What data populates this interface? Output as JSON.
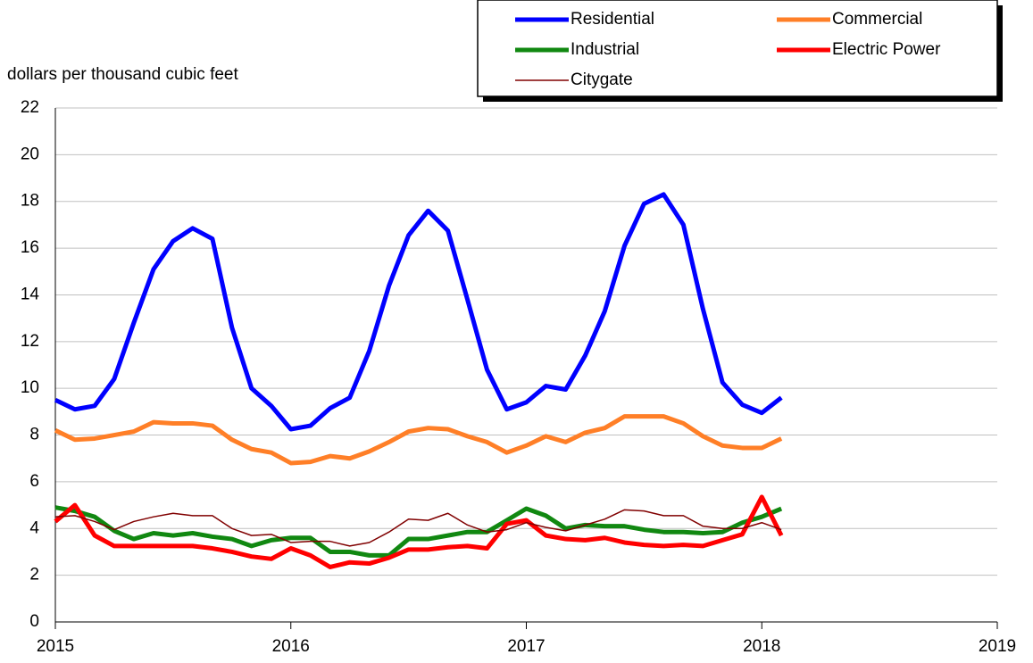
{
  "chart_data": {
    "type": "line",
    "y_axis_label": "dollars per thousand cubic feet",
    "x": [
      2015,
      2015.083,
      2015.167,
      2015.25,
      2015.333,
      2015.417,
      2015.5,
      2015.583,
      2015.667,
      2015.75,
      2015.833,
      2015.917,
      2016,
      2016.083,
      2016.167,
      2016.25,
      2016.333,
      2016.417,
      2016.5,
      2016.583,
      2016.667,
      2016.75,
      2016.833,
      2016.917,
      2017,
      2017.083,
      2017.167,
      2017.25,
      2017.333,
      2017.417,
      2017.5,
      2017.583,
      2017.667,
      2017.75,
      2017.833,
      2017.917,
      2018,
      2018.083
    ],
    "series": [
      {
        "name": "Residential",
        "color": "#0000ff",
        "width": 5,
        "values": [
          9.5,
          9.1,
          9.25,
          10.4,
          12.8,
          15.1,
          16.3,
          16.85,
          16.4,
          12.6,
          10.0,
          9.25,
          8.25,
          8.4,
          9.15,
          9.6,
          11.6,
          14.4,
          16.55,
          17.6,
          16.75,
          13.8,
          10.8,
          9.1,
          9.4,
          10.1,
          9.95,
          11.4,
          13.3,
          16.1,
          17.9,
          18.3,
          17.0,
          13.4,
          10.25,
          9.3,
          8.95,
          9.6
        ]
      },
      {
        "name": "Commercial",
        "color": "#ff7f27",
        "width": 5,
        "values": [
          8.2,
          7.8,
          7.85,
          8.0,
          8.15,
          8.55,
          8.5,
          8.5,
          8.4,
          7.8,
          7.4,
          7.25,
          6.8,
          6.85,
          7.1,
          7.0,
          7.3,
          7.7,
          8.15,
          8.3,
          8.25,
          7.95,
          7.7,
          7.25,
          7.55,
          7.95,
          7.7,
          8.1,
          8.3,
          8.8,
          8.8,
          8.8,
          8.5,
          7.95,
          7.55,
          7.45,
          7.45,
          7.85
        ]
      },
      {
        "name": "Industrial",
        "color": "#118811",
        "width": 5,
        "values": [
          4.9,
          4.75,
          4.5,
          3.9,
          3.55,
          3.8,
          3.7,
          3.8,
          3.65,
          3.55,
          3.25,
          3.5,
          3.6,
          3.6,
          3.0,
          3.0,
          2.85,
          2.85,
          3.55,
          3.55,
          3.7,
          3.85,
          3.85,
          4.35,
          4.85,
          4.55,
          4.0,
          4.15,
          4.1,
          4.1,
          3.95,
          3.85,
          3.85,
          3.8,
          3.85,
          4.25,
          4.5,
          4.85
        ]
      },
      {
        "name": "Electric Power",
        "color": "#ff0000",
        "width": 5,
        "values": [
          4.3,
          5.0,
          3.7,
          3.25,
          3.25,
          3.25,
          3.25,
          3.25,
          3.15,
          3.0,
          2.8,
          2.7,
          3.15,
          2.85,
          2.35,
          2.55,
          2.5,
          2.75,
          3.1,
          3.1,
          3.2,
          3.25,
          3.15,
          4.2,
          4.35,
          3.7,
          3.55,
          3.5,
          3.6,
          3.4,
          3.3,
          3.25,
          3.3,
          3.25,
          3.5,
          3.75,
          5.35,
          3.7
        ]
      },
      {
        "name": "Citygate",
        "color": "#800000",
        "width": 1.5,
        "values": [
          4.5,
          4.55,
          4.3,
          3.95,
          4.3,
          4.5,
          4.65,
          4.55,
          4.55,
          4.0,
          3.7,
          3.75,
          3.4,
          3.45,
          3.45,
          3.25,
          3.4,
          3.85,
          4.4,
          4.35,
          4.65,
          4.15,
          3.85,
          3.95,
          4.25,
          4.05,
          3.9,
          4.15,
          4.4,
          4.8,
          4.75,
          4.55,
          4.55,
          4.1,
          4.0,
          4.0,
          4.25,
          3.95
        ]
      }
    ],
    "xlim": [
      2015,
      2019
    ],
    "xticks": [
      2015,
      2016,
      2017,
      2018,
      2019
    ],
    "ylim": [
      0,
      22
    ],
    "yticks": [
      0,
      2,
      4,
      6,
      8,
      10,
      12,
      14,
      16,
      18,
      20,
      22
    ],
    "grid": true,
    "legend": "top-right"
  }
}
